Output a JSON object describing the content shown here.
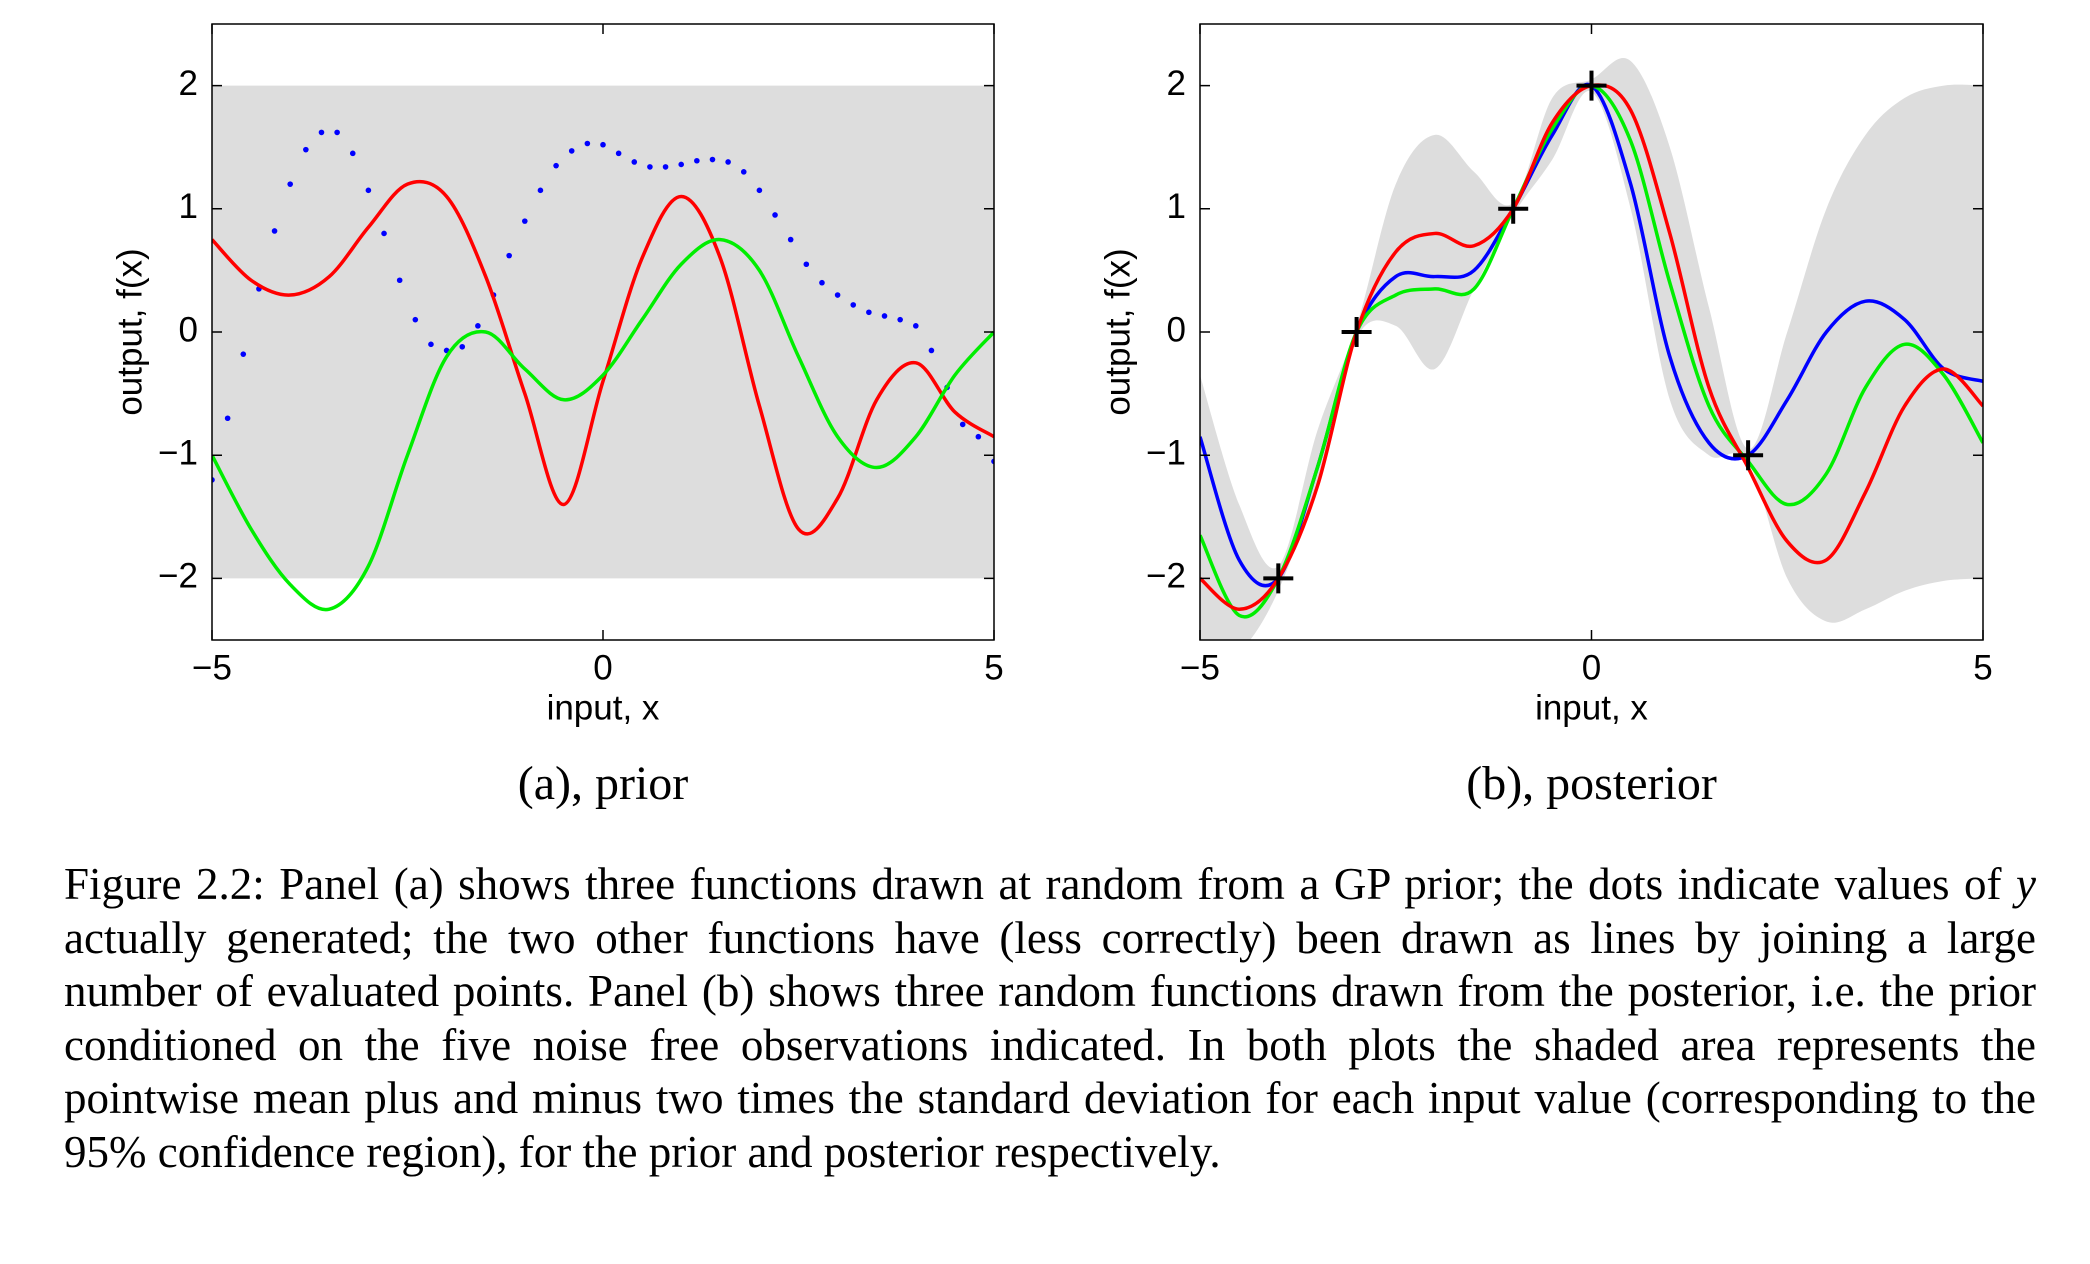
{
  "chart_data": [
    {
      "type": "line",
      "subplot_caption": "(a), prior",
      "xlabel": "input, x",
      "ylabel": "output, f(x)",
      "xlim": [
        -5,
        5
      ],
      "ylim": [
        -2.5,
        2.5
      ],
      "xticks": [
        {
          "value": -5,
          "label": "−5"
        },
        0,
        5
      ],
      "yticks": [
        {
          "value": -2,
          "label": "−2"
        },
        {
          "value": -1,
          "label": "−1"
        },
        0,
        1,
        2
      ],
      "band": {
        "color": "#dddddd",
        "x": [
          -5,
          5
        ],
        "lower": [
          -2,
          -2
        ],
        "upper": [
          2,
          2
        ]
      },
      "series": [
        {
          "color": "#0000ff",
          "style": "dots",
          "x": [
            -5,
            -4.8,
            -4.6,
            -4.4,
            -4.2,
            -4,
            -3.8,
            -3.6,
            -3.4,
            -3.2,
            -3,
            -2.8,
            -2.6,
            -2.4,
            -2.2,
            -2,
            -1.8,
            -1.6,
            -1.4,
            -1.2,
            -1,
            -0.8,
            -0.6,
            -0.4,
            -0.2,
            0,
            0.2,
            0.4,
            0.6,
            0.8,
            1,
            1.2,
            1.4,
            1.6,
            1.8,
            2,
            2.2,
            2.4,
            2.6,
            2.8,
            3,
            3.2,
            3.4,
            3.6,
            3.8,
            4,
            4.2,
            4.4,
            4.6,
            4.8,
            5
          ],
          "values": [
            -1.2,
            -0.7,
            -0.18,
            0.35,
            0.82,
            1.2,
            1.48,
            1.62,
            1.62,
            1.45,
            1.15,
            0.8,
            0.42,
            0.1,
            -0.1,
            -0.15,
            -0.12,
            0.05,
            0.3,
            0.62,
            0.9,
            1.15,
            1.35,
            1.47,
            1.53,
            1.52,
            1.45,
            1.38,
            1.34,
            1.34,
            1.36,
            1.39,
            1.4,
            1.38,
            1.3,
            1.15,
            0.95,
            0.75,
            0.55,
            0.4,
            0.3,
            0.22,
            0.16,
            0.13,
            0.1,
            0.05,
            -0.15,
            -0.45,
            -0.75,
            -0.85,
            -1.05
          ]
        },
        {
          "color": "#ff0000",
          "style": "line",
          "x": [
            -5,
            -4.5,
            -4,
            -3.5,
            -3,
            -2.5,
            -2,
            -1.5,
            -1,
            -0.5,
            0,
            0.5,
            1,
            1.5,
            2,
            2.5,
            3,
            3.5,
            4,
            4.5,
            5
          ],
          "values": [
            0.75,
            0.42,
            0.3,
            0.45,
            0.85,
            1.2,
            1.1,
            0.45,
            -0.5,
            -1.4,
            -0.4,
            0.6,
            1.1,
            0.6,
            -0.6,
            -1.6,
            -1.35,
            -0.55,
            -0.25,
            -0.65,
            -0.85
          ]
        },
        {
          "color": "#00ee00",
          "style": "line",
          "x": [
            -5,
            -4.5,
            -4,
            -3.5,
            -3,
            -2.5,
            -2,
            -1.5,
            -1,
            -0.5,
            0,
            0.5,
            1,
            1.5,
            2,
            2.5,
            3,
            3.5,
            4,
            4.5,
            5
          ],
          "values": [
            -1,
            -1.6,
            -2.05,
            -2.25,
            -1.9,
            -1,
            -0.2,
            0,
            -0.3,
            -0.55,
            -0.35,
            0.1,
            0.55,
            0.75,
            0.5,
            -0.2,
            -0.85,
            -1.1,
            -0.85,
            -0.35,
            0
          ]
        }
      ]
    },
    {
      "type": "line",
      "subplot_caption": "(b), posterior",
      "xlabel": "input, x",
      "ylabel": "output, f(x)",
      "xlim": [
        -5,
        5
      ],
      "ylim": [
        -2.5,
        2.5
      ],
      "xticks": [
        {
          "value": -5,
          "label": "−5"
        },
        0,
        5
      ],
      "yticks": [
        {
          "value": -2,
          "label": "−2"
        },
        {
          "value": -1,
          "label": "−1"
        },
        0,
        1,
        2
      ],
      "band": {
        "color": "#dddddd",
        "x": [
          -5,
          -4.5,
          -4,
          -3.5,
          -3,
          -2.5,
          -2,
          -1.5,
          -1,
          -0.5,
          0,
          0.5,
          1,
          1.5,
          2,
          2.5,
          3,
          3.5,
          4,
          4.5,
          5
        ],
        "lower": [
          -2.7,
          -2.6,
          -2.1,
          -1.2,
          -0.05,
          0.05,
          -0.3,
          0.35,
          0.95,
          1.4,
          1.95,
          1,
          -0.55,
          -1,
          -1.05,
          -2,
          -2.35,
          -2.25,
          -2.1,
          -2.02,
          -2
        ],
        "upper": [
          -0.35,
          -1.4,
          -1.9,
          -0.8,
          0.05,
          1.2,
          1.6,
          1.3,
          1.05,
          1.9,
          2.05,
          2.2,
          1.5,
          0.2,
          -0.95,
          0,
          1,
          1.6,
          1.9,
          2,
          2
        ]
      },
      "series": [
        {
          "color": "#0000ff",
          "style": "line",
          "x": [
            -5,
            -4.5,
            -4,
            -3.5,
            -3,
            -2.5,
            -2,
            -1.5,
            -1,
            -0.5,
            0,
            0.5,
            1,
            1.5,
            2,
            2.5,
            3,
            3.5,
            4,
            4.5,
            5
          ],
          "values": [
            -0.85,
            -1.85,
            -2,
            -1.1,
            0,
            0.45,
            0.45,
            0.5,
            1,
            1.6,
            2,
            1.2,
            -0.2,
            -0.9,
            -1,
            -0.55,
            0,
            0.25,
            0.1,
            -0.3,
            -0.4
          ]
        },
        {
          "color": "#00ee00",
          "style": "line",
          "x": [
            -5,
            -4.5,
            -4,
            -3.5,
            -3,
            -2.5,
            -2,
            -1.5,
            -1,
            -0.5,
            0,
            0.5,
            1,
            1.5,
            2,
            2.5,
            3,
            3.5,
            4,
            4.5,
            5
          ],
          "values": [
            -1.65,
            -2.3,
            -2,
            -1.1,
            0,
            0.3,
            0.35,
            0.35,
            1,
            1.65,
            2,
            1.55,
            0.4,
            -0.6,
            -1.05,
            -1.4,
            -1.15,
            -0.45,
            -0.1,
            -0.35,
            -0.9
          ]
        },
        {
          "color": "#ff0000",
          "style": "line",
          "x": [
            -5,
            -4.5,
            -4,
            -3.5,
            -3,
            -2.5,
            -2,
            -1.5,
            -1,
            -0.5,
            0,
            0.5,
            1,
            1.5,
            2,
            2.5,
            3,
            3.5,
            4,
            4.5,
            5
          ],
          "values": [
            -2,
            -2.25,
            -2,
            -1.25,
            0,
            0.65,
            0.8,
            0.7,
            1,
            1.7,
            2,
            1.8,
            0.8,
            -0.45,
            -1.1,
            -1.7,
            -1.85,
            -1.3,
            -0.6,
            -0.3,
            -0.6
          ]
        },
        {
          "color": "#000000",
          "style": "plus",
          "x": [
            -4,
            -3,
            -1,
            0,
            2
          ],
          "values": [
            -2,
            0,
            1,
            2,
            -1
          ]
        }
      ]
    }
  ],
  "caption": {
    "label": "Figure 2.2:",
    "before": "Panel (a) shows three functions drawn at random from a GP prior; the dots indicate values of",
    "italic": "y",
    "after": "actually generated; the two other functions have (less correctly) been drawn as lines by joining a large number of evaluated points. Panel (b) shows three random functions drawn from the posterior, i.e. the prior conditioned on the five noise free observations indicated. In both plots the shaded area represents the pointwise mean plus and minus two times the standard deviation for each input value (corresponding to the 95% confidence region), for the prior and posterior respectively."
  }
}
